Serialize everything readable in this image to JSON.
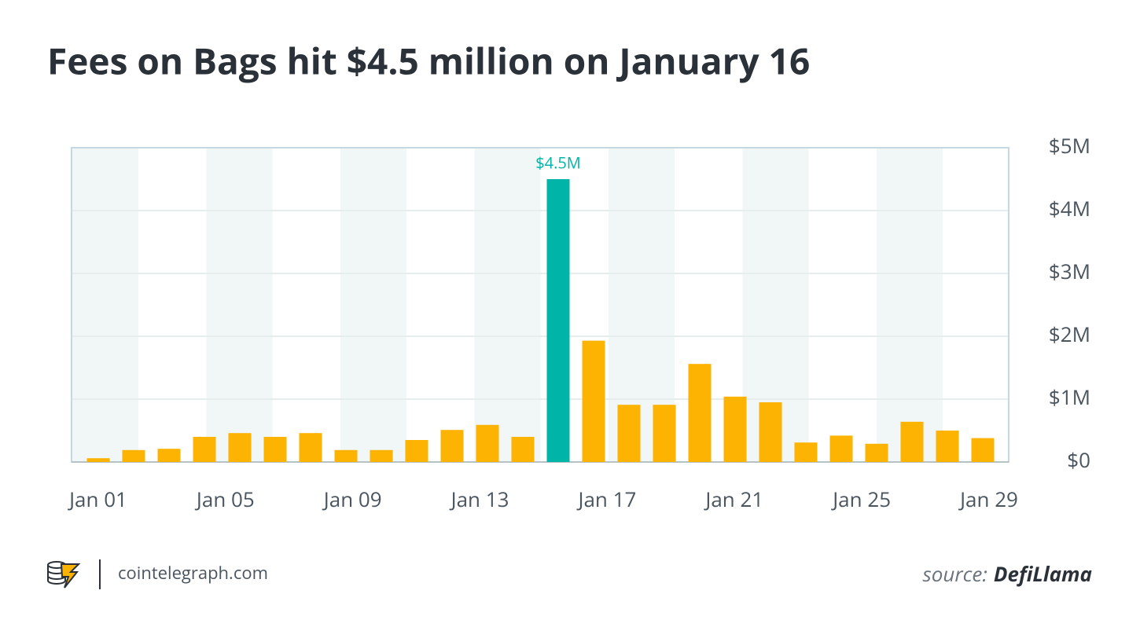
{
  "chart_data": {
    "type": "bar",
    "title": "Fees on Bags hit $4.5 million on January 16",
    "categories": [
      null,
      null,
      null,
      null,
      null,
      null,
      null,
      null,
      null,
      null,
      null,
      null,
      null,
      null,
      null,
      null,
      null,
      null,
      null,
      null,
      null,
      null,
      null,
      null,
      null,
      null
    ],
    "values": [
      60000,
      190000,
      210000,
      400000,
      460000,
      400000,
      460000,
      190000,
      190000,
      350000,
      510000,
      590000,
      400000,
      4500000,
      1930000,
      910000,
      910000,
      1560000,
      1040000,
      950000,
      310000,
      420000,
      290000,
      640000,
      500000,
      380000
    ],
    "value_labels": [
      null,
      null,
      null,
      null,
      null,
      null,
      null,
      null,
      null,
      null,
      null,
      null,
      null,
      "$4.5M",
      null,
      null,
      null,
      null,
      null,
      null,
      null,
      null,
      null,
      null,
      null,
      null
    ],
    "colors": [
      "#fdb302",
      "#fdb302",
      "#fdb302",
      "#fdb302",
      "#fdb302",
      "#fdb302",
      "#fdb302",
      "#fdb302",
      "#fdb302",
      "#fdb302",
      "#fdb302",
      "#fdb302",
      "#fdb302",
      "#00b5a8",
      "#fdb302",
      "#fdb302",
      "#fdb302",
      "#fdb302",
      "#fdb302",
      "#fdb302",
      "#fdb302",
      "#fdb302",
      "#fdb302",
      "#fdb302",
      "#fdb302",
      "#fdb302"
    ],
    "xticks": [
      "Jan 01",
      "Jan 05",
      "Jan 09",
      "Jan 13",
      "Jan 17",
      "Jan 21",
      "Jan 25",
      "Jan 29"
    ],
    "ylim": [
      0,
      5000000
    ],
    "yticks": [
      {
        "value": 0,
        "label": "$0"
      },
      {
        "value": 1000000,
        "label": "$1M"
      },
      {
        "value": 2000000,
        "label": "$2M"
      },
      {
        "value": 3000000,
        "label": "$3M"
      },
      {
        "value": 4000000,
        "label": "$4M"
      },
      {
        "value": 5000000,
        "label": "$5M"
      }
    ],
    "grid": true,
    "y_axis_side": "right"
  },
  "footer": {
    "site": "cointelegraph.com",
    "source_prefix": "source:",
    "source": "DefiLlama"
  }
}
